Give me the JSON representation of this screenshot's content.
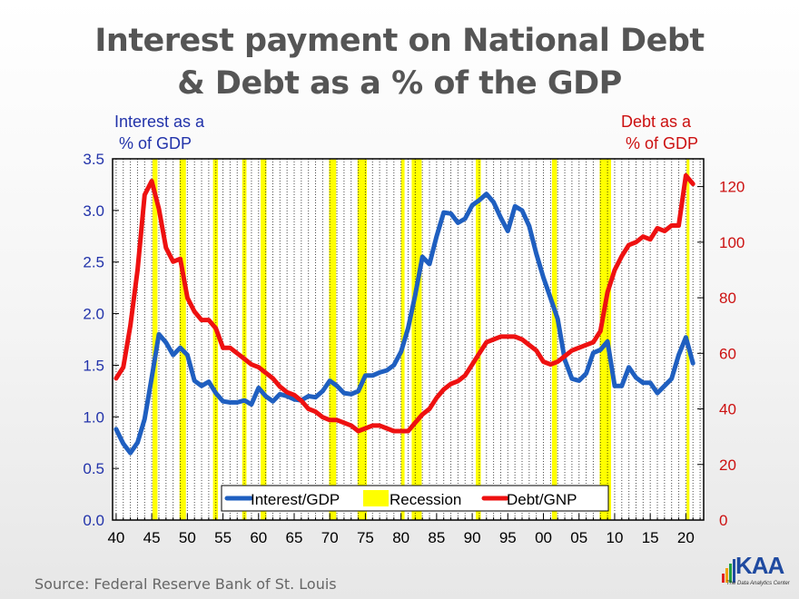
{
  "title_lines": [
    "Interest payment on National Debt",
    "& Debt as a % of the GDP"
  ],
  "left_axis_title": [
    "Interest as a",
    " % of GDP"
  ],
  "right_axis_title": [
    "Debt as a",
    " % of GDP"
  ],
  "source": "Source:  Federal Reserve Bank of St. Louis",
  "logo": {
    "word": "KAA",
    "tagline": "The Data Analytics Center"
  },
  "colors": {
    "interest": "#1f5fc0",
    "debt": "#ee1111",
    "recession": "#ffff00",
    "left_axis_text": "#2233aa",
    "right_axis_text": "#cc1111"
  },
  "chart_data": {
    "type": "line",
    "x_ticks": [
      "40",
      "45",
      "50",
      "55",
      "60",
      "65",
      "70",
      "75",
      "80",
      "85",
      "90",
      "95",
      "00",
      "05",
      "10",
      "15",
      "20"
    ],
    "x_tick_years": [
      1940,
      1945,
      1950,
      1955,
      1960,
      1965,
      1970,
      1975,
      1980,
      1985,
      1990,
      1995,
      2000,
      2005,
      2010,
      2015,
      2020
    ],
    "xlim": [
      1939.5,
      2022.5
    ],
    "y_left": {
      "ticks": [
        "0.0",
        "0.5",
        "1.0",
        "1.5",
        "2.0",
        "2.5",
        "3.0",
        "3.5"
      ],
      "ylim": [
        0,
        3.5
      ]
    },
    "y_right": {
      "ticks": [
        "0",
        "20",
        "40",
        "60",
        "80",
        "100",
        "120"
      ],
      "ylim": [
        0,
        130
      ]
    },
    "grid": "vertical",
    "legend": {
      "placement": "bottom-center",
      "entries": [
        "Interest/GDP",
        "Recession",
        "Debt/GNP"
      ]
    },
    "recessions": [
      [
        1945.1,
        1945.8
      ],
      [
        1948.9,
        1949.8
      ],
      [
        1953.6,
        1954.3
      ],
      [
        1957.7,
        1958.3
      ],
      [
        1960.3,
        1961.1
      ],
      [
        1969.9,
        1970.9
      ],
      [
        1973.9,
        1975.2
      ],
      [
        1980.0,
        1980.5
      ],
      [
        1981.5,
        1982.9
      ],
      [
        1990.5,
        1991.2
      ],
      [
        2001.2,
        2001.9
      ],
      [
        2007.9,
        2009.5
      ],
      [
        2020.1,
        2020.5
      ]
    ],
    "series": [
      {
        "name": "Interest/GDP",
        "axis": "left",
        "x": [
          1940,
          1941,
          1942,
          1943,
          1944,
          1945,
          1946,
          1947,
          1948,
          1949,
          1950,
          1951,
          1952,
          1953,
          1954,
          1955,
          1956,
          1957,
          1958,
          1959,
          1960,
          1961,
          1962,
          1963,
          1964,
          1965,
          1966,
          1967,
          1968,
          1969,
          1970,
          1971,
          1972,
          1973,
          1974,
          1975,
          1976,
          1977,
          1978,
          1979,
          1980,
          1981,
          1982,
          1983,
          1984,
          1985,
          1986,
          1987,
          1988,
          1989,
          1990,
          1991,
          1992,
          1993,
          1994,
          1995,
          1996,
          1997,
          1998,
          1999,
          2000,
          2001,
          2002,
          2003,
          2004,
          2005,
          2006,
          2007,
          2008,
          2009,
          2010,
          2011,
          2012,
          2013,
          2014,
          2015,
          2016,
          2017,
          2018,
          2019,
          2020,
          2021
        ],
        "y": [
          0.88,
          0.74,
          0.65,
          0.75,
          0.98,
          1.38,
          1.8,
          1.72,
          1.6,
          1.67,
          1.6,
          1.35,
          1.3,
          1.34,
          1.23,
          1.15,
          1.14,
          1.14,
          1.16,
          1.12,
          1.28,
          1.2,
          1.15,
          1.22,
          1.2,
          1.17,
          1.16,
          1.2,
          1.19,
          1.25,
          1.35,
          1.3,
          1.23,
          1.22,
          1.25,
          1.4,
          1.4,
          1.43,
          1.45,
          1.5,
          1.63,
          1.86,
          2.18,
          2.55,
          2.48,
          2.75,
          2.98,
          2.97,
          2.88,
          2.92,
          3.05,
          3.1,
          3.16,
          3.08,
          2.93,
          2.8,
          3.04,
          3.0,
          2.85,
          2.58,
          2.35,
          2.15,
          1.95,
          1.55,
          1.37,
          1.35,
          1.42,
          1.62,
          1.65,
          1.73,
          1.3,
          1.3,
          1.48,
          1.38,
          1.33,
          1.33,
          1.23,
          1.3,
          1.37,
          1.6,
          1.77,
          1.52
        ]
      },
      {
        "name": "Debt/GNP",
        "axis": "right",
        "x": [
          1940,
          1941,
          1942,
          1943,
          1944,
          1945,
          1946,
          1947,
          1948,
          1949,
          1950,
          1951,
          1952,
          1953,
          1954,
          1955,
          1956,
          1957,
          1958,
          1959,
          1960,
          1961,
          1962,
          1963,
          1964,
          1965,
          1966,
          1967,
          1968,
          1969,
          1970,
          1971,
          1972,
          1973,
          1974,
          1975,
          1976,
          1977,
          1978,
          1979,
          1980,
          1981,
          1982,
          1983,
          1984,
          1985,
          1986,
          1987,
          1988,
          1989,
          1990,
          1991,
          1992,
          1993,
          1994,
          1995,
          1996,
          1997,
          1998,
          1999,
          2000,
          2001,
          2002,
          2003,
          2004,
          2005,
          2006,
          2007,
          2008,
          2009,
          2010,
          2011,
          2012,
          2013,
          2014,
          2015,
          2016,
          2017,
          2018,
          2019,
          2020,
          2021
        ],
        "y": [
          51,
          55,
          70,
          90,
          117,
          122,
          112,
          98,
          93,
          94,
          80,
          75,
          72,
          72,
          69,
          62,
          62,
          60,
          58,
          56,
          55,
          53,
          51,
          48,
          46,
          45,
          43,
          40,
          39,
          37,
          36,
          36,
          35,
          34,
          32,
          33,
          34,
          34,
          33,
          32,
          32,
          32,
          35,
          38,
          40,
          44,
          47,
          49,
          50,
          52,
          56,
          60,
          64,
          65,
          66,
          66,
          66,
          65,
          63,
          61,
          57,
          56,
          57,
          59,
          61,
          62,
          63,
          64,
          68,
          82,
          90,
          95,
          99,
          100,
          102,
          101,
          105,
          104,
          106,
          106,
          124,
          121
        ]
      }
    ]
  }
}
